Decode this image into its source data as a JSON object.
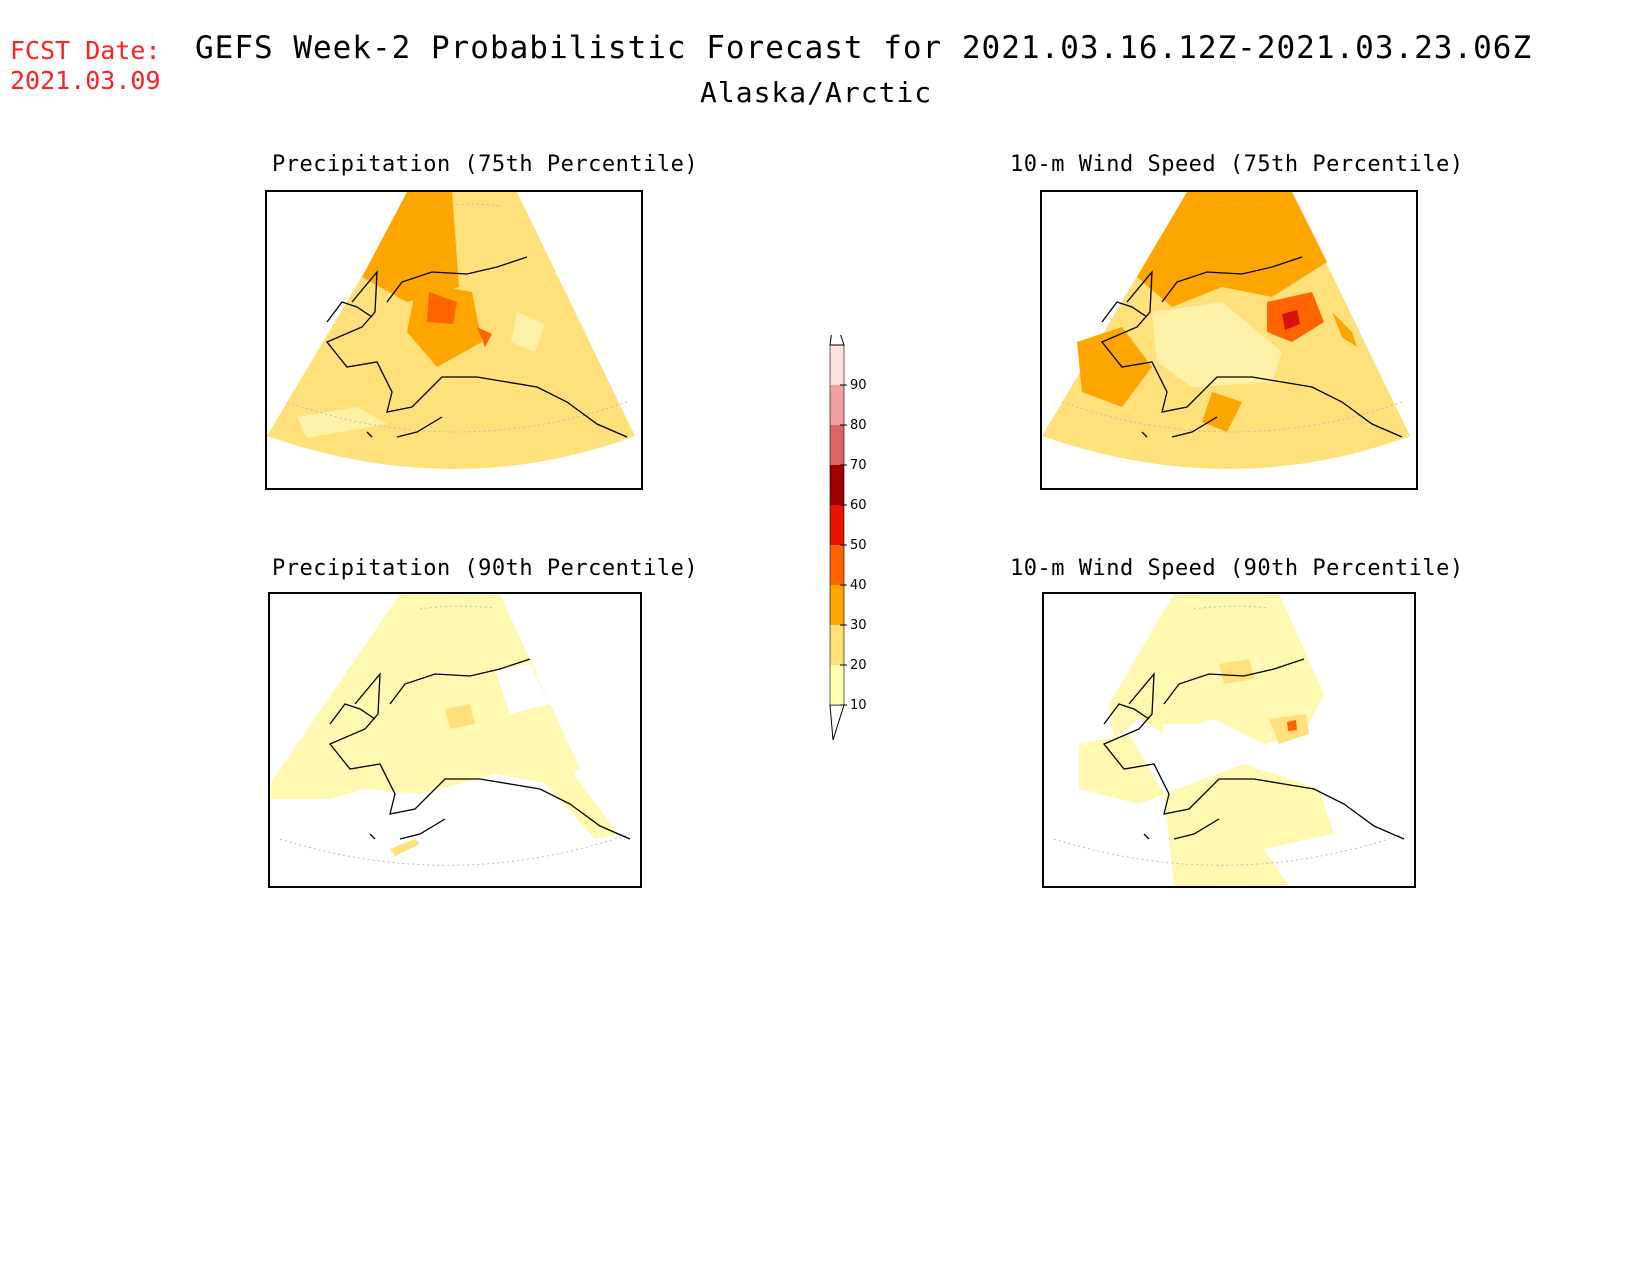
{
  "header": {
    "fcst_label": "FCST Date:",
    "fcst_date": "2021.03.09",
    "title": "GEFS Week-2 Probabilistic Forecast for 2021.03.16.12Z-2021.03.23.06Z",
    "region": "Alaska/Arctic"
  },
  "panels": [
    {
      "title": "Precipitation (75th Percentile)",
      "dominant_category": "20-30",
      "maxima_category": "40-50"
    },
    {
      "title": "10-m Wind Speed (75th Percentile)",
      "dominant_category": "30-40",
      "maxima_category": "50-60"
    },
    {
      "title": "Precipitation (90th Percentile)",
      "dominant_category": "10-20",
      "maxima_category": "20-30"
    },
    {
      "title": "10-m Wind Speed (90th Percentile)",
      "dominant_category": "10-20",
      "maxima_category": "40-50"
    }
  ],
  "colorbar": {
    "levels": [
      "10",
      "20",
      "30",
      "40",
      "50",
      "60",
      "70",
      "80",
      "90"
    ],
    "colors": [
      "#ffffb4",
      "#ffe17a",
      "#ffa500",
      "#ff6400",
      "#e61400",
      "#a00000",
      "#dc6464",
      "#f0a0a0",
      "#fde0e0"
    ]
  },
  "colors": {
    "fcst_text": "#ff2020",
    "category_10_20": "#fff8b0",
    "category_20_30": "#ffe07a",
    "category_30_40": "#ffa500",
    "category_40_50": "#ff6400",
    "category_50_60": "#d81010"
  }
}
